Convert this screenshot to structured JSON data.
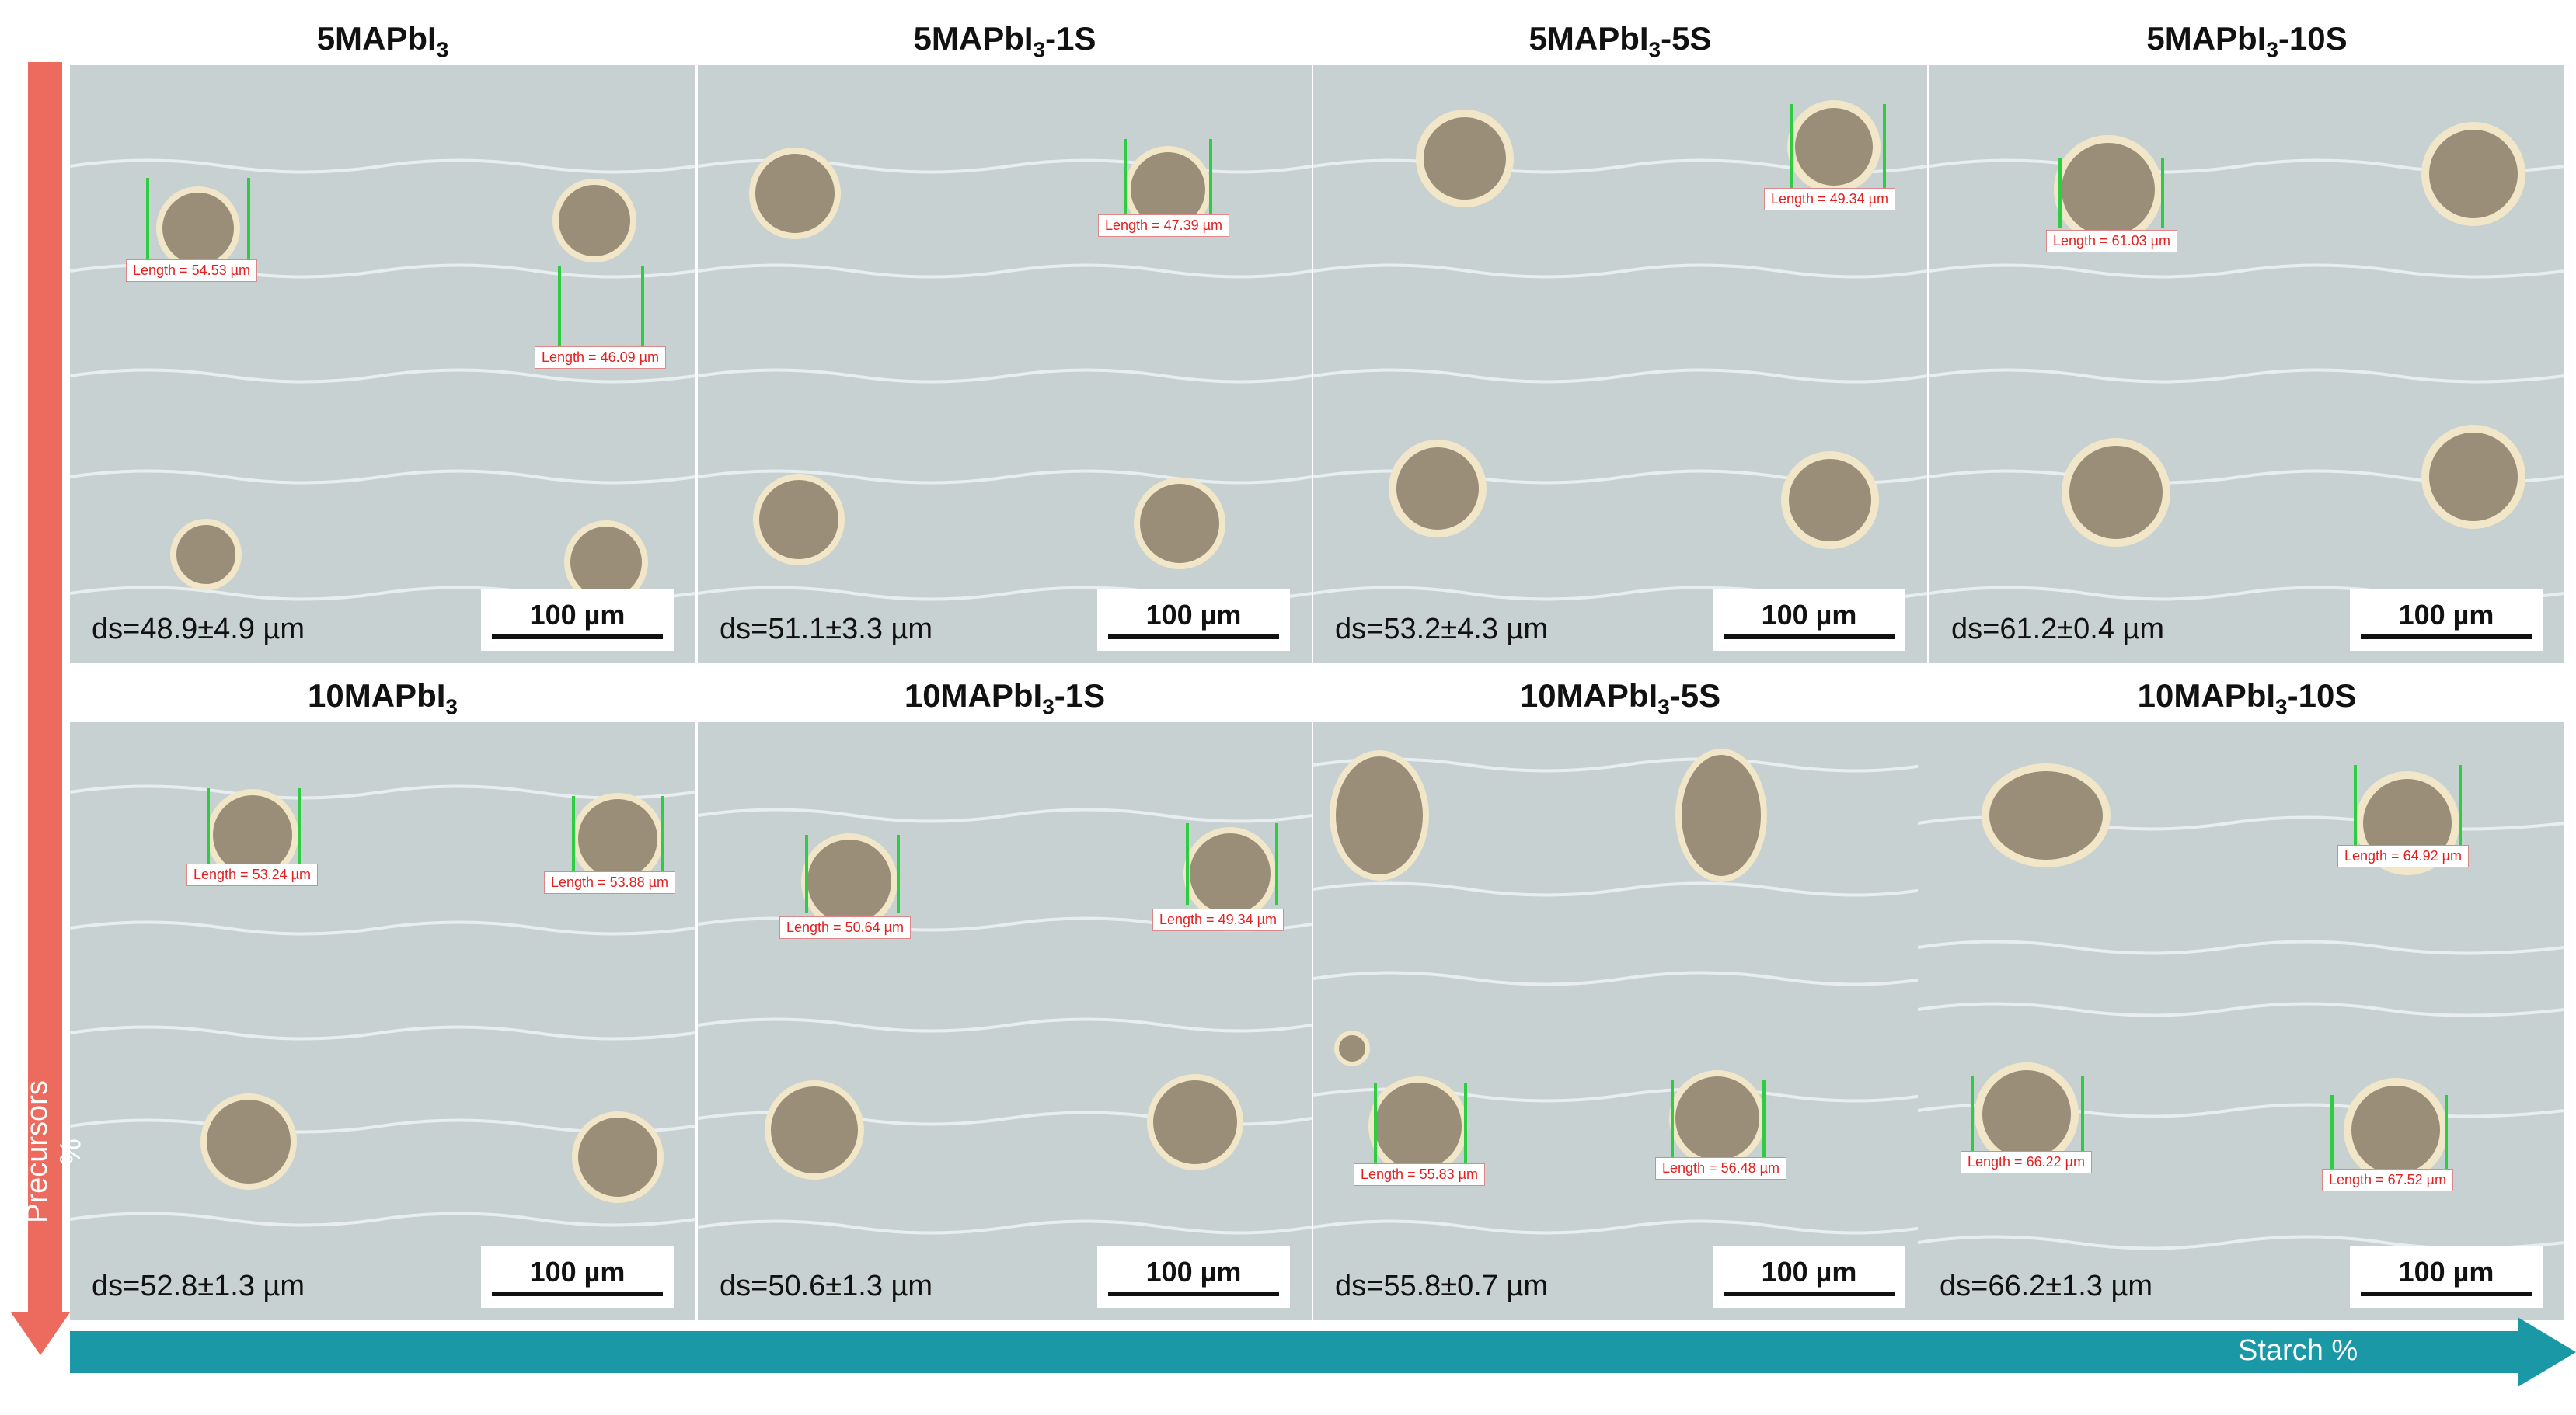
{
  "figure": {
    "rows": [
      {
        "panels": [
          {
            "title_main": "5MAPbI",
            "title_sub": "3",
            "title_suffix": "",
            "ds": "ds=48.9±4.9 µm",
            "scale": "100 µm",
            "labels": [
              "Length = 54.53 µm",
              "Length = 46.09 µm"
            ]
          },
          {
            "title_main": "5MAPbI",
            "title_sub": "3",
            "title_suffix": "-1S",
            "ds": "ds=51.1±3.3 µm",
            "scale": "100 µm",
            "labels": [
              "Length = 47.39 µm"
            ]
          },
          {
            "title_main": "5MAPbI",
            "title_sub": "3",
            "title_suffix": "-5S",
            "ds": "ds=53.2±4.3 µm",
            "scale": "100 µm",
            "labels": [
              "Length = 49.34 µm"
            ]
          },
          {
            "title_main": "5MAPbI",
            "title_sub": "3",
            "title_suffix": "-10S",
            "ds": "ds=61.2±0.4 µm",
            "scale": "100 µm",
            "labels": [
              "Length = 61.03 µm"
            ]
          }
        ]
      },
      {
        "panels": [
          {
            "title_main": "10MAPbI",
            "title_sub": "3",
            "title_suffix": "",
            "ds": "ds=52.8±1.3 µm",
            "scale": "100 µm",
            "labels": [
              "Length = 53.24 µm",
              "Length = 53.88 µm"
            ]
          },
          {
            "title_main": "10MAPbI",
            "title_sub": "3",
            "title_suffix": "-1S",
            "ds": "ds=50.6±1.3 µm",
            "scale": "100 µm",
            "labels": [
              "Length = 50.64 µm",
              "Length = 49.34 µm"
            ]
          },
          {
            "title_main": "10MAPbI",
            "title_sub": "3",
            "title_suffix": "-5S",
            "ds": "ds=55.8±0.7 µm",
            "scale": "100 µm",
            "labels": [
              "Length = 55.83 µm",
              "Length = 56.48 µm"
            ]
          },
          {
            "title_main": "10MAPbI",
            "title_sub": "3",
            "title_suffix": "-10S",
            "ds": "ds=66.2±1.3 µm",
            "scale": "100 µm",
            "labels": [
              "Length = 64.92 µm",
              "Length = 66.22 µm",
              "Length = 67.52 µm"
            ]
          }
        ]
      }
    ],
    "axis_vertical_label": "Precursors %",
    "axis_horizontal_label": "Starch %",
    "colors": {
      "vertical_arrow": "#ec6b5e",
      "horizontal_arrow": "#1b98a6",
      "measurement": "#e32020",
      "guide": "#2ecc40"
    }
  }
}
